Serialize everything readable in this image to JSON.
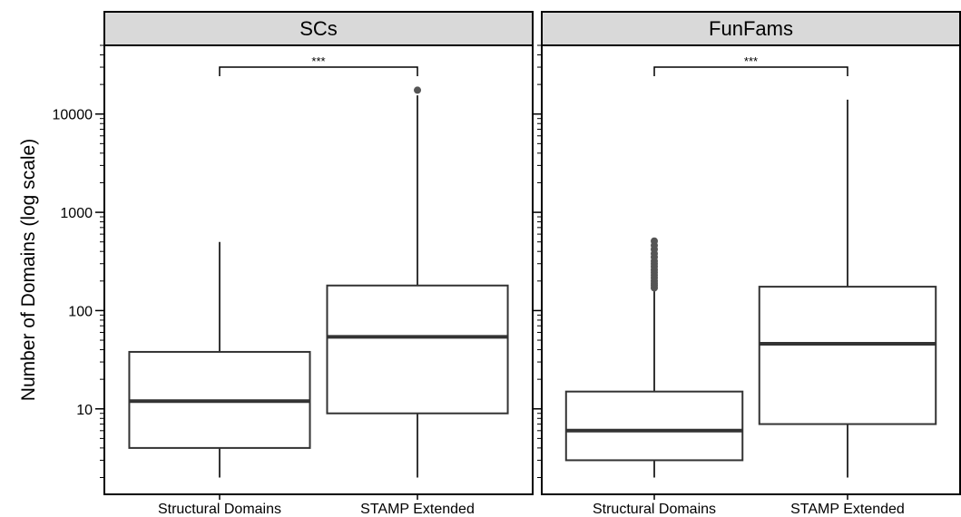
{
  "chart_data": {
    "type": "box",
    "ylabel": "Number of Domains (log scale)",
    "y_scale": "log10",
    "ylim": [
      1.35,
      50000
    ],
    "y_ticks": [
      10,
      100,
      1000,
      10000
    ],
    "y_tick_labels": [
      "10",
      "100",
      "1000",
      "10000"
    ],
    "categories": [
      "Structural Domains",
      "STAMP Extended"
    ],
    "panels": [
      {
        "title": "SCs",
        "significance": "***",
        "boxes": [
          {
            "category": "Structural Domains",
            "min": 2,
            "q1": 4,
            "median": 12,
            "q3": 38,
            "max": 500,
            "outliers": []
          },
          {
            "category": "STAMP Extended",
            "min": 2,
            "q1": 9,
            "median": 54,
            "q3": 180,
            "max": 15500,
            "outliers": [
              17500
            ]
          }
        ]
      },
      {
        "title": "FunFams",
        "significance": "***",
        "boxes": [
          {
            "category": "Structural Domains",
            "min": 2,
            "q1": 3,
            "median": 6,
            "q3": 15,
            "max": 165,
            "outliers": [
              170,
              180,
              190,
              200,
              215,
              230,
              245,
              260,
              280,
              300,
              320,
              350,
              380,
              420,
              460,
              510
            ]
          },
          {
            "category": "STAMP Extended",
            "min": 2,
            "q1": 7,
            "median": 46,
            "q3": 175,
            "max": 14000,
            "outliers": []
          }
        ]
      }
    ]
  },
  "colors": {
    "strip_fill": "#d9d9d9",
    "box_stroke": "#333333",
    "median": "#333333",
    "outlier": "#555555",
    "frame": "#000000"
  }
}
